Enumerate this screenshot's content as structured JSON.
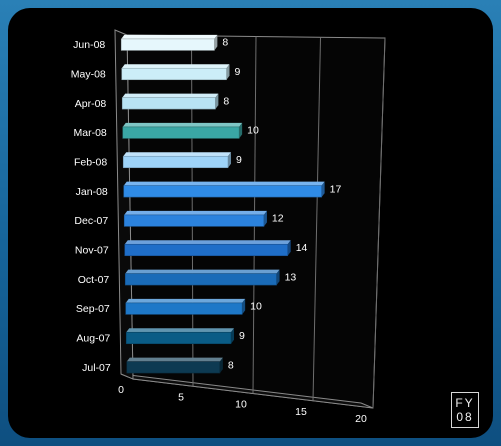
{
  "badge": {
    "line1": "FY",
    "line2": "08"
  },
  "chart_data": {
    "type": "bar",
    "orientation": "horizontal",
    "style": "3d",
    "categories": [
      "Jul-07",
      "Aug-07",
      "Sep-07",
      "Oct-07",
      "Nov-07",
      "Dec-07",
      "Jan-08",
      "Feb-08",
      "Mar-08",
      "Apr-08",
      "May-08",
      "Jun-08"
    ],
    "values": [
      8,
      9,
      10,
      13,
      14,
      12,
      17,
      9,
      10,
      8,
      9,
      8
    ],
    "data_labels": [
      "8",
      "9",
      "10",
      "13",
      "14",
      "12",
      "17",
      "9",
      "10",
      "8",
      "9",
      "8"
    ],
    "bar_colors": [
      "#0d3a52",
      "#0a5c86",
      "#1e78c8",
      "#1a6bb8",
      "#1f6ec8",
      "#2b82dd",
      "#2f8be6",
      "#9ed3f8",
      "#3aa7a5",
      "#b8e3f4",
      "#cceef8",
      "#e6f7fc"
    ],
    "xlim": [
      0,
      20
    ],
    "x_ticks": [
      0,
      5,
      10,
      15,
      20
    ],
    "x_tick_labels": [
      "0",
      "5",
      "10",
      "15",
      "20"
    ],
    "grid": true,
    "legend": "none",
    "title": "",
    "xlabel": "",
    "ylabel": ""
  }
}
